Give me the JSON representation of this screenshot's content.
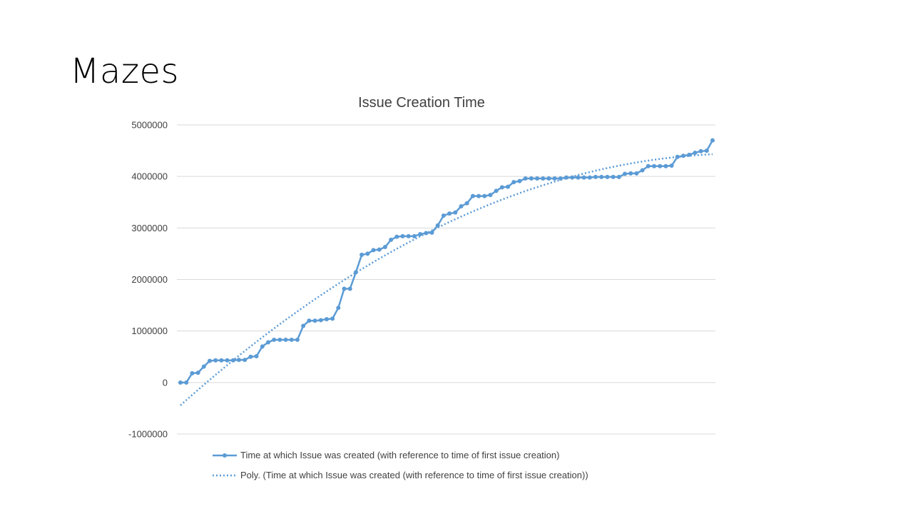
{
  "slide": {
    "title": "Mazes"
  },
  "chart_data": {
    "type": "line",
    "title": "Issue Creation Time",
    "xlabel": "",
    "ylabel": "",
    "ylim": [
      -1000000,
      5000000
    ],
    "yticks": [
      5000000,
      4000000,
      3000000,
      2000000,
      1000000,
      0,
      -1000000
    ],
    "ytick_labels": [
      "5000000",
      "4000000",
      "3000000",
      "2000000",
      "1000000",
      "0",
      "-1000000"
    ],
    "grid": true,
    "legend_position": "bottom",
    "series": [
      {
        "name": "Time at which Issue was created (with reference to time of first issue creation)",
        "color": "#5b9bd5",
        "style": "solid-markers",
        "values": [
          0,
          0,
          180000,
          190000,
          310000,
          420000,
          430000,
          430000,
          430000,
          430000,
          440000,
          440000,
          500000,
          510000,
          700000,
          780000,
          830000,
          830000,
          830000,
          830000,
          830000,
          1100000,
          1200000,
          1200000,
          1210000,
          1230000,
          1240000,
          1450000,
          1820000,
          1820000,
          2140000,
          2480000,
          2500000,
          2570000,
          2580000,
          2630000,
          2770000,
          2830000,
          2840000,
          2840000,
          2840000,
          2880000,
          2900000,
          2910000,
          3050000,
          3240000,
          3280000,
          3300000,
          3420000,
          3480000,
          3620000,
          3620000,
          3620000,
          3640000,
          3720000,
          3790000,
          3800000,
          3890000,
          3910000,
          3960000,
          3960000,
          3960000,
          3960000,
          3960000,
          3960000,
          3960000,
          3980000,
          3980000,
          3980000,
          3980000,
          3980000,
          3990000,
          3990000,
          3990000,
          3990000,
          3990000,
          4050000,
          4060000,
          4060000,
          4120000,
          4200000,
          4200000,
          4200000,
          4200000,
          4210000,
          4380000,
          4400000,
          4420000,
          4460000,
          4490000,
          4500000,
          4700000
        ]
      },
      {
        "name": "Poly. (Time at which Issue was created (with reference to time of first issue creation))",
        "color": "#5b9bd5",
        "style": "dotted",
        "trend_order": 2
      }
    ]
  }
}
